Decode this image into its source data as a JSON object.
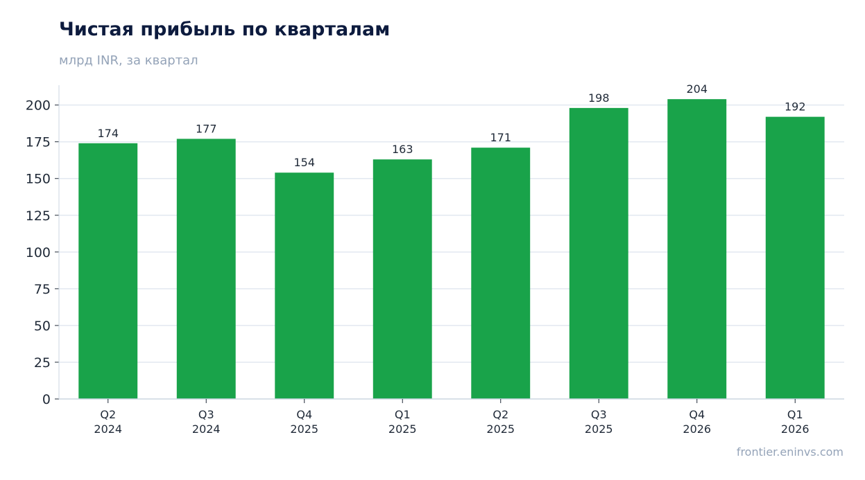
{
  "header": {
    "title": "Чистая прибыль по кварталам",
    "subtitle": "млрд INR, за квартал"
  },
  "footer": {
    "source": "frontier.eninvs.com"
  },
  "colors": {
    "bar": "#19a34a",
    "grid": "#e2e8f0",
    "axis": "#cbd5e1",
    "title": "#0d1b3e",
    "muted": "#94a3b8"
  },
  "chart_data": {
    "type": "bar",
    "title": "Чистая прибыль по кварталам",
    "subtitle": "млрд INR, за квартал",
    "categories": [
      [
        "Q2",
        "2024"
      ],
      [
        "Q3",
        "2024"
      ],
      [
        "Q4",
        "2025"
      ],
      [
        "Q1",
        "2025"
      ],
      [
        "Q2",
        "2025"
      ],
      [
        "Q3",
        "2025"
      ],
      [
        "Q4",
        "2026"
      ],
      [
        "Q1",
        "2026"
      ]
    ],
    "values": [
      174,
      177,
      154,
      163,
      171,
      198,
      204,
      192
    ],
    "data_labels": [
      "174",
      "177",
      "154",
      "163",
      "171",
      "198",
      "204",
      "192"
    ],
    "yticks": [
      0,
      25,
      50,
      75,
      100,
      125,
      150,
      175,
      200
    ],
    "ylim": [
      0,
      213.5
    ],
    "grid": true,
    "xlabel": "",
    "ylabel": ""
  }
}
